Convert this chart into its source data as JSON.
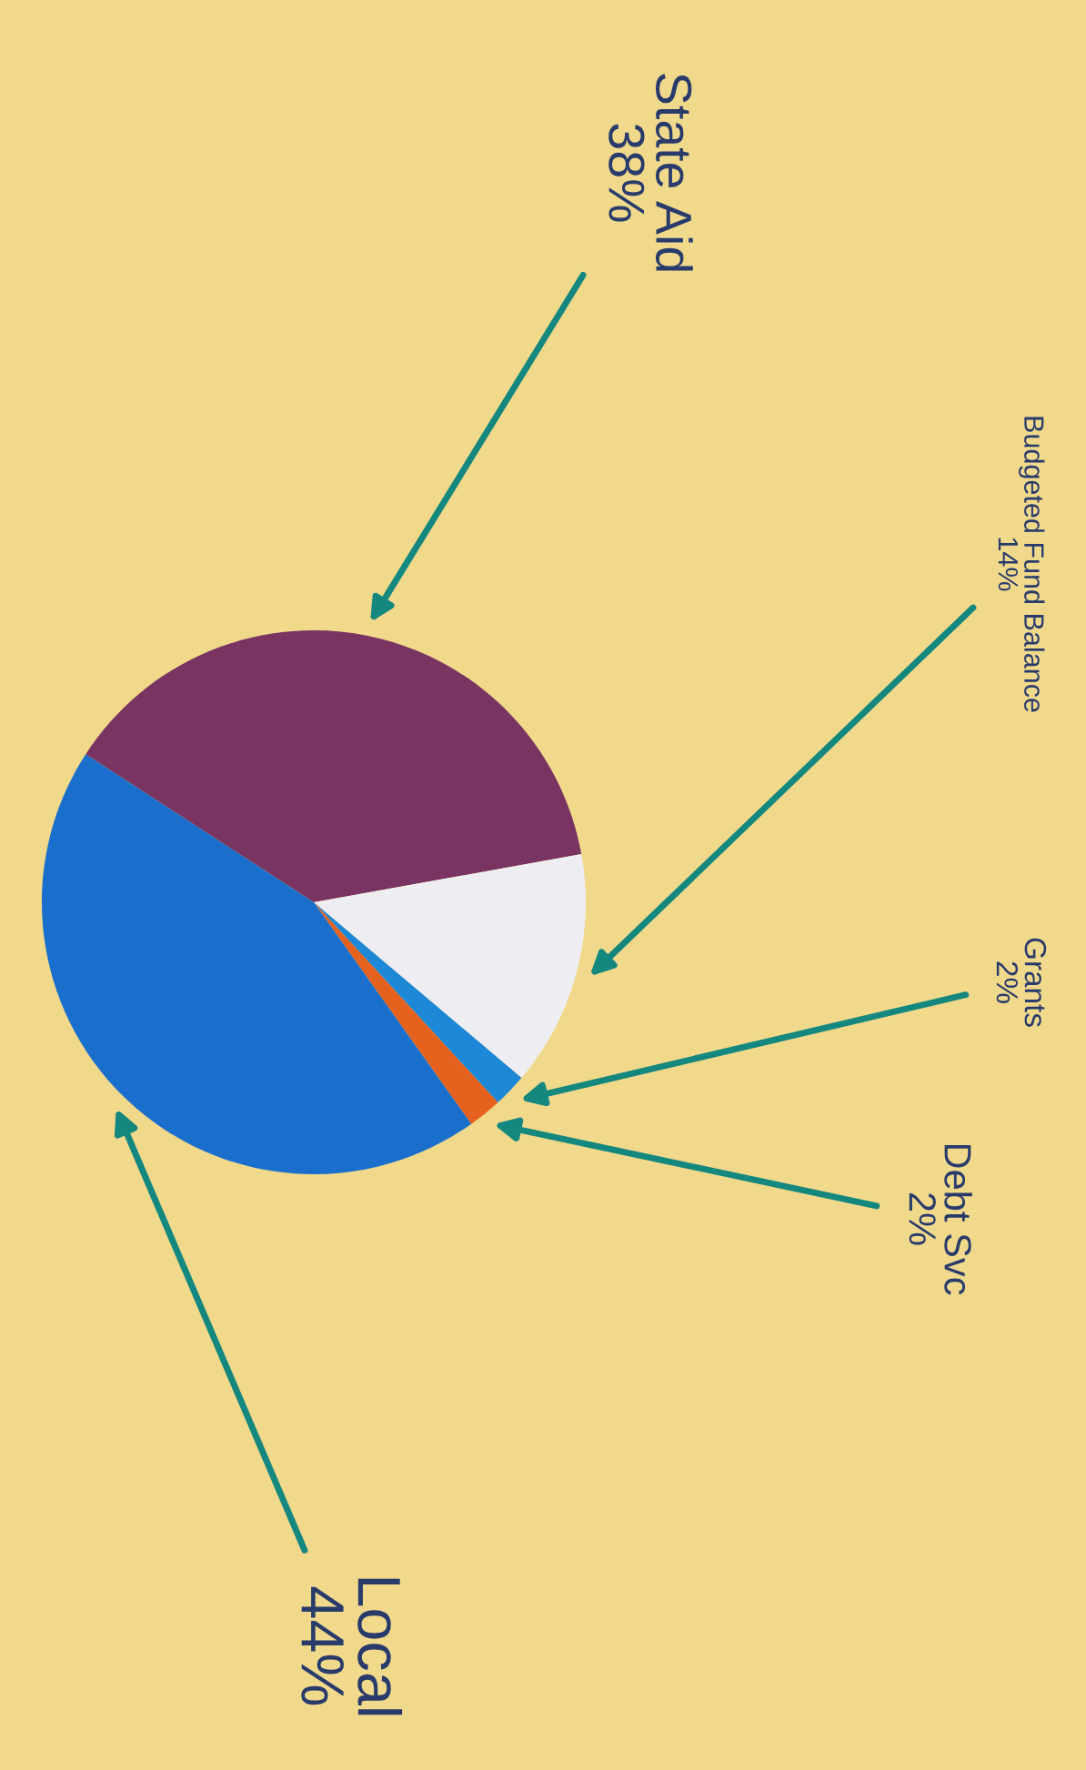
{
  "chart_data": {
    "type": "pie",
    "categories": [
      "State Aid",
      "Budgeted Fund Balance",
      "Grants",
      "Debt Svc",
      "Local"
    ],
    "values": [
      38,
      14,
      2,
      2,
      44
    ],
    "value_labels": [
      "38%",
      "14%",
      "2%",
      "2%",
      "44%"
    ],
    "colors": [
      "#7a3461",
      "#eeeef2",
      "#1e88d8",
      "#e5621e",
      "#1b6fcc"
    ],
    "legend": false
  }
}
